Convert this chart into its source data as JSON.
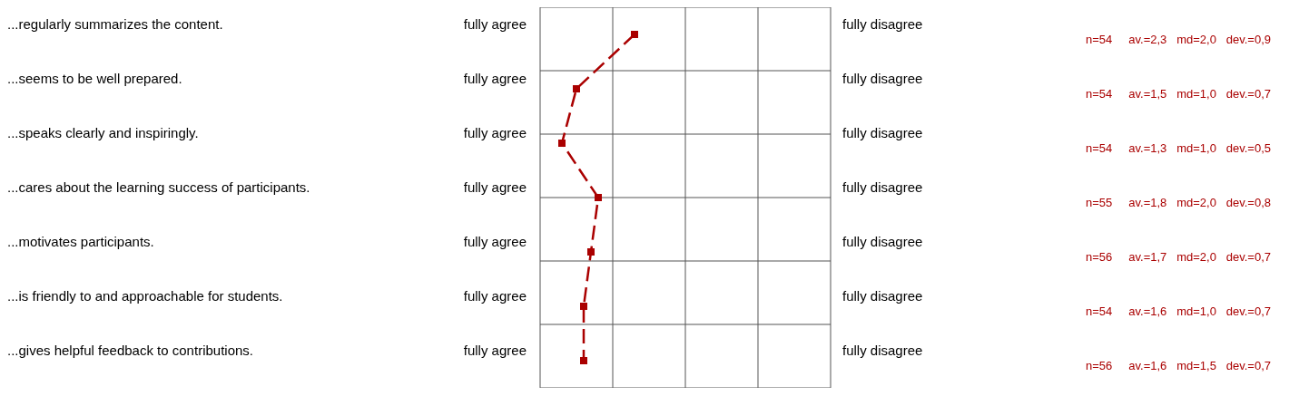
{
  "chart_data": {
    "type": "line",
    "orientation": "horizontal",
    "categories": [
      "...regularly summarizes the content.",
      "...seems to be well prepared.",
      "...speaks clearly and inspiringly.",
      "...cares about the learning success of participants.",
      "...motivates participants.",
      "...is friendly to and approachable for students.",
      "...gives helpful feedback to contributions."
    ],
    "values": [
      2.3,
      1.5,
      1.3,
      1.8,
      1.7,
      1.6,
      1.6
    ],
    "value_labels": [
      "n=54     av.=2,3   md=2,0   dev.=0,9",
      "n=54     av.=1,5   md=1,0   dev.=0,7",
      "n=54     av.=1,3   md=1,0   dev.=0,5",
      "n=55     av.=1,8   md=2,0   dev.=0,8",
      "n=56     av.=1,7   md=2,0   dev.=0,7",
      "n=54     av.=1,6   md=1,0   dev.=0,7",
      "n=56     av.=1,6   md=1,5   dev.=0,7"
    ],
    "color": "#aa0000",
    "xlim": [
      1,
      5
    ],
    "xticks": [
      {
        "value": 1,
        "label": null
      },
      {
        "value": 2,
        "label": null
      },
      {
        "value": 3,
        "label": null
      },
      {
        "value": 4,
        "label": null
      },
      {
        "value": 5,
        "label": null
      }
    ],
    "tick_labels": "y",
    "annotations": [
      "fully agree",
      "fully disagree"
    ],
    "grid": true,
    "marker": "square",
    "line_style": "dashed"
  }
}
